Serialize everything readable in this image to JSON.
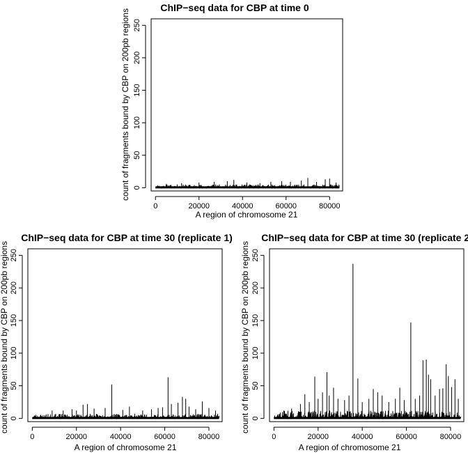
{
  "charts": [
    {
      "title": "ChIP−seq data for CBP at time 0",
      "xlabel": "A region of chromosome 21",
      "ylabel": "count of fragments bound by CBP on 200pb regions"
    },
    {
      "title": "ChIP−seq data for CBP at time 30 (replicate 1)",
      "xlabel": "A region of chromosome 21",
      "ylabel": "count of fragments bound by CBP on 200pb regions"
    },
    {
      "title": "ChIP−seq data for CBP at time 30 (replicate 2)",
      "xlabel": "A region of chromosome 21",
      "ylabel": "count of fragments bound by CBP on 200pb regions"
    }
  ],
  "chart_data": [
    {
      "type": "line",
      "title": "ChIP−seq data for CBP at time 0",
      "xlabel": "A region of chromosome 21",
      "ylabel": "count of fragments bound by CBP on 200pb regions",
      "xlim": [
        -2000,
        86000
      ],
      "ylim": [
        -5,
        260
      ],
      "xticks": [
        0,
        20000,
        40000,
        60000,
        80000
      ],
      "yticks": [
        0,
        50,
        100,
        150,
        200,
        250
      ],
      "baseline_noise_max": 5,
      "peaks": [
        [
          5000,
          6
        ],
        [
          12000,
          7
        ],
        [
          20000,
          8
        ],
        [
          27000,
          9
        ],
        [
          33000,
          10
        ],
        [
          36000,
          12
        ],
        [
          42000,
          8
        ],
        [
          48000,
          7
        ],
        [
          53000,
          9
        ],
        [
          58000,
          10
        ],
        [
          62000,
          9
        ],
        [
          67000,
          11
        ],
        [
          70000,
          15
        ],
        [
          74000,
          9
        ],
        [
          78000,
          13
        ],
        [
          80000,
          14
        ],
        [
          83000,
          8
        ]
      ]
    },
    {
      "type": "line",
      "title": "ChIP−seq data for CBP at time 30 (replicate 1)",
      "xlabel": "A region of chromosome 21",
      "ylabel": "count of fragments bound by CBP on 200pb regions",
      "xlim": [
        -2000,
        86000
      ],
      "ylim": [
        -5,
        260
      ],
      "xticks": [
        0,
        20000,
        40000,
        60000,
        80000
      ],
      "yticks": [
        0,
        50,
        100,
        150,
        200,
        250
      ],
      "baseline_noise_max": 7,
      "peaks": [
        [
          9000,
          12
        ],
        [
          14000,
          12
        ],
        [
          18000,
          14
        ],
        [
          20000,
          12
        ],
        [
          23000,
          21
        ],
        [
          25000,
          22
        ],
        [
          28000,
          15
        ],
        [
          33000,
          16
        ],
        [
          36000,
          52
        ],
        [
          41000,
          13
        ],
        [
          44000,
          18
        ],
        [
          50000,
          12
        ],
        [
          54000,
          14
        ],
        [
          57000,
          16
        ],
        [
          59000,
          17
        ],
        [
          61500,
          63
        ],
        [
          63000,
          22
        ],
        [
          66000,
          24
        ],
        [
          68000,
          33
        ],
        [
          69500,
          30
        ],
        [
          71000,
          18
        ],
        [
          74000,
          14
        ],
        [
          77000,
          26
        ],
        [
          80000,
          16
        ],
        [
          83000,
          12
        ]
      ]
    },
    {
      "type": "line",
      "title": "ChIP−seq data for CBP at time 30 (replicate 2)",
      "xlabel": "A region of chromosome 21",
      "ylabel": "count of fragments bound by CBP on 200pb regions",
      "xlim": [
        -2000,
        86000
      ],
      "ylim": [
        -5,
        260
      ],
      "xticks": [
        0,
        20000,
        40000,
        60000,
        80000
      ],
      "yticks": [
        0,
        50,
        100,
        150,
        200,
        250
      ],
      "baseline_noise_max": 12,
      "peaks": [
        [
          8000,
          15
        ],
        [
          12000,
          22
        ],
        [
          14000,
          37
        ],
        [
          16000,
          25
        ],
        [
          18500,
          64
        ],
        [
          20000,
          30
        ],
        [
          22000,
          40
        ],
        [
          24000,
          71
        ],
        [
          25000,
          35
        ],
        [
          27000,
          47
        ],
        [
          29000,
          30
        ],
        [
          32000,
          28
        ],
        [
          34000,
          35
        ],
        [
          35800,
          237
        ],
        [
          38000,
          61
        ],
        [
          40000,
          25
        ],
        [
          43000,
          30
        ],
        [
          45000,
          45
        ],
        [
          47000,
          40
        ],
        [
          49000,
          35
        ],
        [
          52000,
          25
        ],
        [
          55000,
          30
        ],
        [
          57000,
          47
        ],
        [
          59000,
          28
        ],
        [
          62000,
          147
        ],
        [
          64000,
          30
        ],
        [
          66000,
          35
        ],
        [
          67500,
          89
        ],
        [
          69000,
          90
        ],
        [
          70000,
          67
        ],
        [
          71000,
          60
        ],
        [
          73000,
          35
        ],
        [
          75000,
          45
        ],
        [
          76500,
          46
        ],
        [
          78000,
          83
        ],
        [
          79000,
          65
        ],
        [
          80500,
          48
        ],
        [
          82000,
          60
        ],
        [
          83500,
          30
        ]
      ]
    }
  ]
}
